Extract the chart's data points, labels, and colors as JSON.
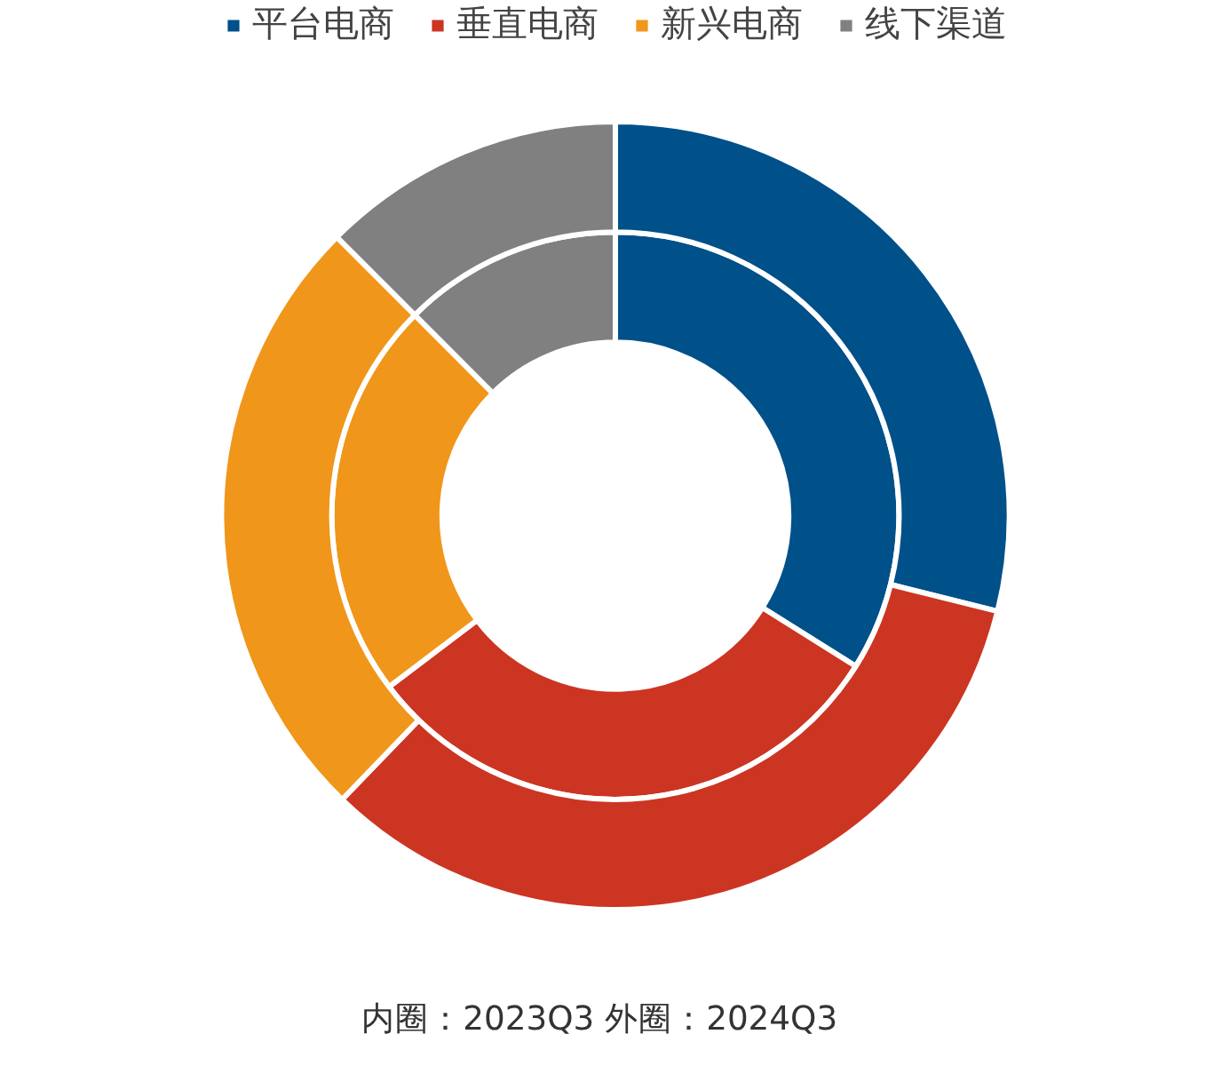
{
  "chart_data": {
    "type": "donut",
    "categories": [
      "平台电商",
      "垂直电商",
      "新兴电商",
      "线下渠道"
    ],
    "colors": [
      "#00508a",
      "#cc3522",
      "#f0961a",
      "#808080"
    ],
    "series": [
      {
        "values": [
          33.9,
          30.8,
          22.8,
          12.5
        ]
      },
      {
        "values": [
          28.9,
          33.3,
          25.3,
          12.5
        ]
      }
    ],
    "legend": "top",
    "annotations": [
      "内圈：2023Q3    外圈：2024Q3"
    ]
  }
}
